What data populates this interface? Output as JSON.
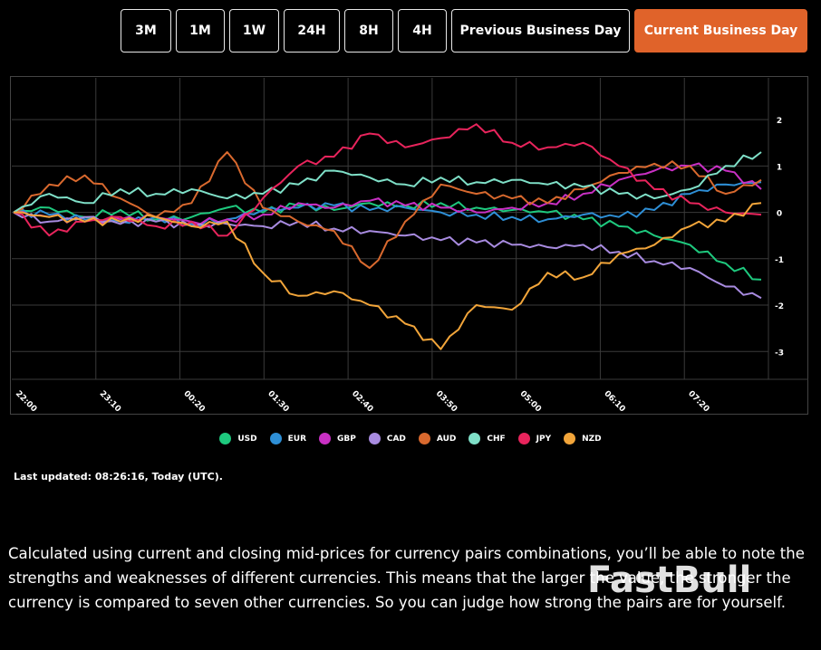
{
  "range_buttons": [
    {
      "label": "3M",
      "active": false
    },
    {
      "label": "1M",
      "active": false
    },
    {
      "label": "1W",
      "active": false
    },
    {
      "label": "24H",
      "active": false
    },
    {
      "label": "8H",
      "active": false
    },
    {
      "label": "4H",
      "active": false
    },
    {
      "label": "Previous Business Day",
      "active": false
    },
    {
      "label": "Current Business Day",
      "active": true
    }
  ],
  "chart_data": {
    "type": "line",
    "title": "",
    "x_ticks": [
      "22:00",
      "23:10",
      "00:20",
      "01:30",
      "02:40",
      "03:50",
      "05:00",
      "06:10",
      "07:20"
    ],
    "y_ticks": [
      2,
      1,
      0,
      -1,
      -2,
      -3
    ],
    "ylim": [
      -3.6,
      2.9
    ],
    "grid": true,
    "legend_position": "bottom",
    "x_range_minutes": [
      0,
      630
    ],
    "series": [
      {
        "name": "USD",
        "color": "#1ec97e",
        "x": [
          0,
          30,
          60,
          90,
          120,
          150,
          180,
          210,
          240,
          270,
          300,
          330,
          360,
          390,
          420,
          450,
          480,
          510,
          540,
          570,
          600,
          630
        ],
        "values": [
          0,
          0.1,
          -0.1,
          0.05,
          -0.15,
          -0.1,
          0.1,
          0,
          0.15,
          0.05,
          0.2,
          0.15,
          0.2,
          0.1,
          0.05,
          0,
          -0.15,
          -0.3,
          -0.5,
          -0.7,
          -1.1,
          -1.45
        ]
      },
      {
        "name": "EUR",
        "color": "#2e8fd6",
        "x": [
          0,
          30,
          60,
          90,
          120,
          150,
          180,
          210,
          240,
          270,
          300,
          330,
          360,
          390,
          420,
          450,
          480,
          510,
          540,
          570,
          600,
          630
        ],
        "values": [
          0,
          -0.05,
          -0.15,
          -0.2,
          -0.1,
          -0.25,
          -0.15,
          0.05,
          0.1,
          0.15,
          0.05,
          0.1,
          0,
          -0.05,
          -0.1,
          -0.15,
          -0.05,
          -0.1,
          0.05,
          0.4,
          0.6,
          0.65
        ]
      },
      {
        "name": "GBP",
        "color": "#c930c4",
        "x": [
          0,
          30,
          60,
          90,
          120,
          150,
          180,
          210,
          240,
          270,
          300,
          330,
          360,
          390,
          420,
          450,
          480,
          510,
          540,
          570,
          600,
          630
        ],
        "values": [
          0,
          -0.1,
          -0.2,
          -0.15,
          -0.1,
          -0.2,
          -0.15,
          -0.05,
          0.2,
          0.1,
          0.25,
          0.15,
          0.1,
          0,
          0.1,
          0.2,
          0.4,
          0.7,
          0.9,
          1.0,
          0.9,
          0.5
        ]
      },
      {
        "name": "CAD",
        "color": "#a88be0",
        "x": [
          0,
          30,
          60,
          90,
          120,
          150,
          180,
          210,
          240,
          270,
          300,
          330,
          360,
          390,
          420,
          450,
          480,
          510,
          540,
          570,
          600,
          630
        ],
        "values": [
          0,
          -0.2,
          -0.1,
          -0.25,
          -0.2,
          -0.3,
          -0.25,
          -0.3,
          -0.2,
          -0.35,
          -0.4,
          -0.5,
          -0.6,
          -0.65,
          -0.7,
          -0.75,
          -0.7,
          -0.85,
          -1.05,
          -1.2,
          -1.6,
          -1.85
        ]
      },
      {
        "name": "AUD",
        "color": "#d9692e",
        "x": [
          0,
          30,
          60,
          90,
          120,
          150,
          180,
          210,
          240,
          270,
          300,
          330,
          360,
          390,
          420,
          450,
          480,
          510,
          540,
          570,
          600,
          630
        ],
        "values": [
          0,
          0.6,
          0.8,
          0.3,
          -0.1,
          0.2,
          1.3,
          0.1,
          -0.2,
          -0.4,
          -1.2,
          -0.2,
          0.6,
          0.4,
          0.3,
          0.2,
          0.5,
          0.85,
          1.05,
          1.0,
          0.4,
          0.7
        ]
      },
      {
        "name": "CHF",
        "color": "#7fe0c8",
        "x": [
          0,
          30,
          60,
          90,
          120,
          150,
          180,
          210,
          240,
          270,
          300,
          330,
          360,
          390,
          420,
          450,
          480,
          510,
          540,
          570,
          600,
          630
        ],
        "values": [
          0,
          0.4,
          0.2,
          0.5,
          0.4,
          0.5,
          0.3,
          0.4,
          0.6,
          0.9,
          0.75,
          0.6,
          0.75,
          0.65,
          0.7,
          0.6,
          0.55,
          0.4,
          0.3,
          0.5,
          1.0,
          1.3
        ]
      },
      {
        "name": "JPY",
        "color": "#e8245c",
        "x": [
          0,
          30,
          60,
          90,
          120,
          150,
          180,
          210,
          240,
          270,
          300,
          330,
          360,
          390,
          420,
          450,
          480,
          510,
          540,
          570,
          600,
          630
        ],
        "values": [
          0,
          -0.5,
          -0.2,
          -0.1,
          -0.3,
          -0.2,
          -0.5,
          0.3,
          1.0,
          1.2,
          1.7,
          1.4,
          1.6,
          1.9,
          1.5,
          1.4,
          1.5,
          1.0,
          0.5,
          0.2,
          0.0,
          -0.05
        ]
      },
      {
        "name": "NZD",
        "color": "#f2a53a",
        "x": [
          0,
          30,
          60,
          90,
          120,
          150,
          180,
          210,
          240,
          270,
          300,
          330,
          360,
          390,
          420,
          450,
          480,
          510,
          540,
          570,
          600,
          630
        ],
        "values": [
          0,
          -0.1,
          -0.2,
          -0.2,
          -0.1,
          -0.3,
          -0.2,
          -1.3,
          -1.8,
          -1.7,
          -2.0,
          -2.4,
          -2.95,
          -2.0,
          -2.1,
          -1.3,
          -1.4,
          -0.9,
          -0.7,
          -0.3,
          -0.2,
          0.2
        ]
      }
    ]
  },
  "legend": [
    {
      "label": "USD",
      "color": "#1ec97e"
    },
    {
      "label": "EUR",
      "color": "#2e8fd6"
    },
    {
      "label": "GBP",
      "color": "#c930c4"
    },
    {
      "label": "CAD",
      "color": "#a88be0"
    },
    {
      "label": "AUD",
      "color": "#d9692e"
    },
    {
      "label": "CHF",
      "color": "#7fe0c8"
    },
    {
      "label": "JPY",
      "color": "#e8245c"
    },
    {
      "label": "NZD",
      "color": "#f2a53a"
    }
  ],
  "last_updated": "Last updated: 08:26:16, Today (UTC).",
  "description": "Calculated using current and closing mid-prices for currency pairs combinations, you’ll be able to note the strengths and weaknesses of different currencies. This means that the larger the value, the stronger the currency is compared to seven other currencies. So you can judge how strong the pairs are for yourself.",
  "watermark": "FastBull",
  "accent_color": "#e0632a"
}
